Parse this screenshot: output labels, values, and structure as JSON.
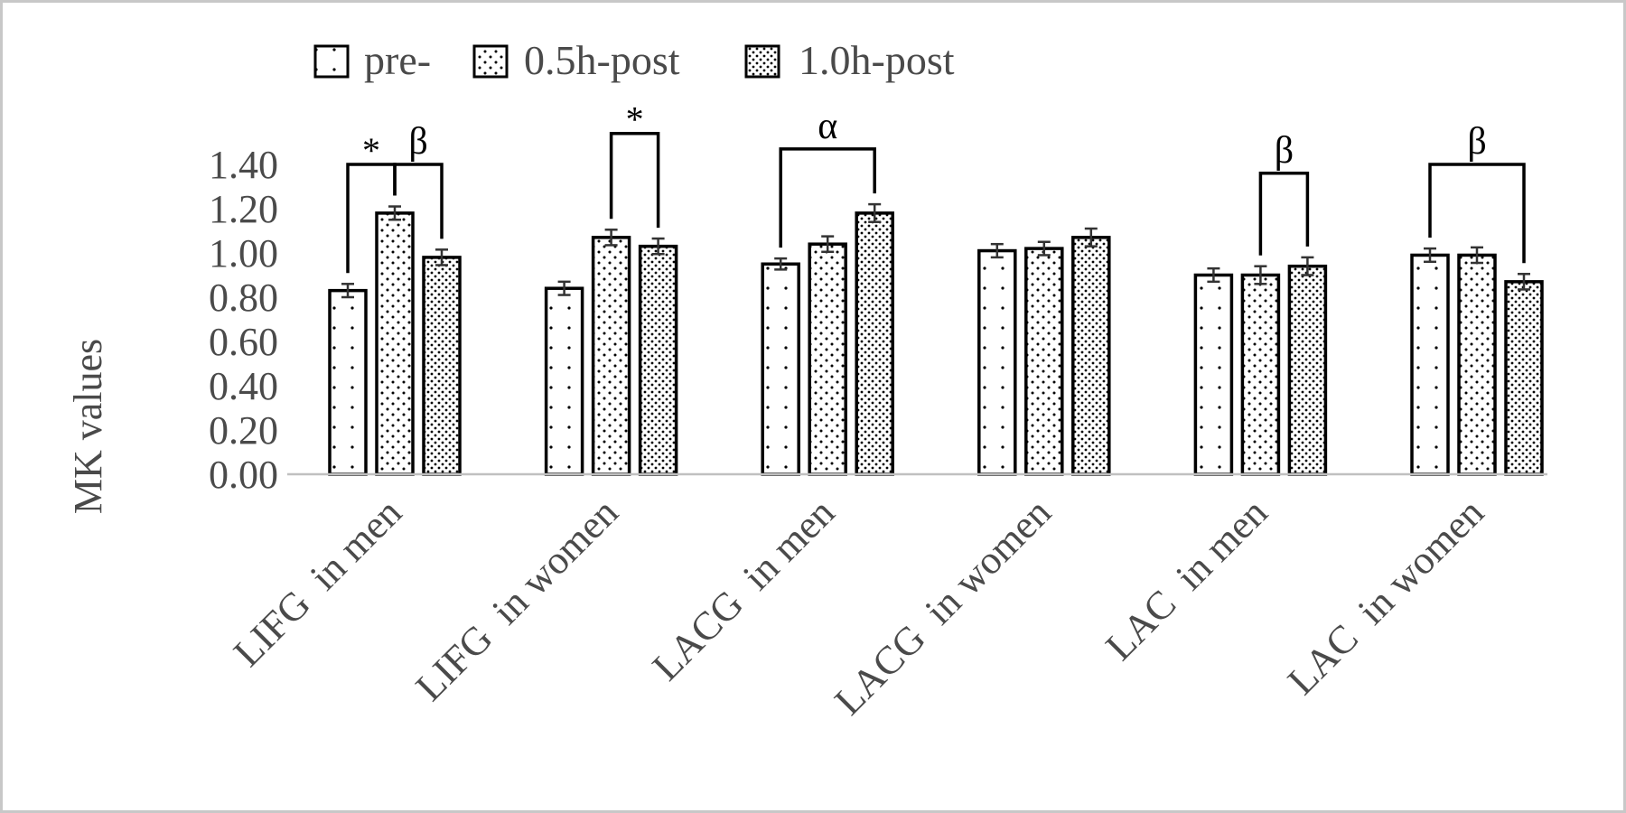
{
  "chart_data": {
    "type": "bar",
    "title": "",
    "xlabel": "",
    "ylabel": "MK values",
    "ylim": [
      0,
      1.4
    ],
    "yticks": [
      "0.00",
      "0.20",
      "0.40",
      "0.60",
      "0.80",
      "1.00",
      "1.20",
      "1.40"
    ],
    "categories": [
      "LIFG  in men",
      "LIFG  in women",
      "LACG  in men",
      "LACG  in women",
      "LAC  in men",
      "LAC  in women"
    ],
    "series": [
      {
        "name": "pre-",
        "values": [
          0.83,
          0.84,
          0.95,
          1.01,
          0.9,
          0.99
        ],
        "errors": [
          0.03,
          0.03,
          0.025,
          0.03,
          0.03,
          0.03
        ]
      },
      {
        "name": "0.5h-post",
        "values": [
          1.18,
          1.07,
          1.04,
          1.02,
          0.9,
          0.99
        ],
        "errors": [
          0.03,
          0.035,
          0.035,
          0.03,
          0.04,
          0.035
        ]
      },
      {
        "name": "1.0h-post",
        "values": [
          0.98,
          1.03,
          1.18,
          1.07,
          0.94,
          0.87
        ],
        "errors": [
          0.035,
          0.035,
          0.04,
          0.04,
          0.04,
          0.035
        ]
      }
    ],
    "legend_position": "top",
    "grid": false,
    "annotations": [
      {
        "category": 0,
        "from": 0,
        "to": 1,
        "symbol": "*",
        "level": 1.4
      },
      {
        "category": 0,
        "from": 1,
        "to": 2,
        "symbol": "β",
        "level": 1.4
      },
      {
        "category": 1,
        "from": 1,
        "to": 2,
        "symbol": "*",
        "level": 1.54
      },
      {
        "category": 2,
        "from": 0,
        "to": 2,
        "symbol": "α",
        "level": 1.47
      },
      {
        "category": 4,
        "from": 1,
        "to": 2,
        "symbol": "β",
        "level": 1.36
      },
      {
        "category": 5,
        "from": 0,
        "to": 2,
        "symbol": "β",
        "level": 1.4
      }
    ]
  }
}
